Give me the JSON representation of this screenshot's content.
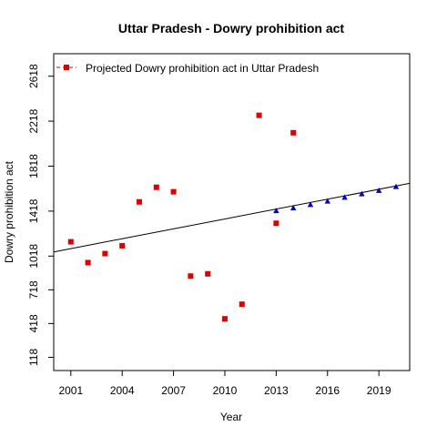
{
  "chart_data": {
    "type": "scatter",
    "title": "Uttar Pradesh  -  Dowry prohibition act",
    "xlabel": "Year",
    "ylabel": "Dowry prohibition act",
    "xlim": [
      2000.0,
      2020.8
    ],
    "ylim": [
      0,
      2818
    ],
    "x_ticks": [
      2001,
      2004,
      2007,
      2010,
      2013,
      2016,
      2019
    ],
    "y_ticks": [
      118,
      418,
      718,
      1018,
      1418,
      1818,
      2218,
      2618
    ],
    "grid": false,
    "legend": {
      "position": "top-left",
      "entries": [
        "Projected  Dowry prohibition act  in  Uttar Pradesh"
      ]
    },
    "series": [
      {
        "marker": "square",
        "color": "#dd0000",
        "x": [
          2001,
          2002,
          2003,
          2004,
          2005,
          2006,
          2007,
          2008,
          2009,
          2010,
          2011,
          2012,
          2013,
          2014
        ],
        "y": [
          1145,
          960,
          1040,
          1110,
          1500,
          1630,
          1590,
          840,
          860,
          460,
          590,
          2270,
          1310,
          2115
        ]
      },
      {
        "marker": "triangle",
        "color": "#0000cc",
        "x": [
          2013,
          2014,
          2015,
          2016,
          2017,
          2018,
          2019,
          2020
        ],
        "y": [
          1420,
          1445,
          1475,
          1505,
          1540,
          1570,
          1600,
          1635
        ]
      }
    ],
    "trend_line": {
      "x": [
        2000.0,
        2020.8
      ],
      "y": [
        1055,
        1665
      ],
      "color": "#000000"
    }
  }
}
